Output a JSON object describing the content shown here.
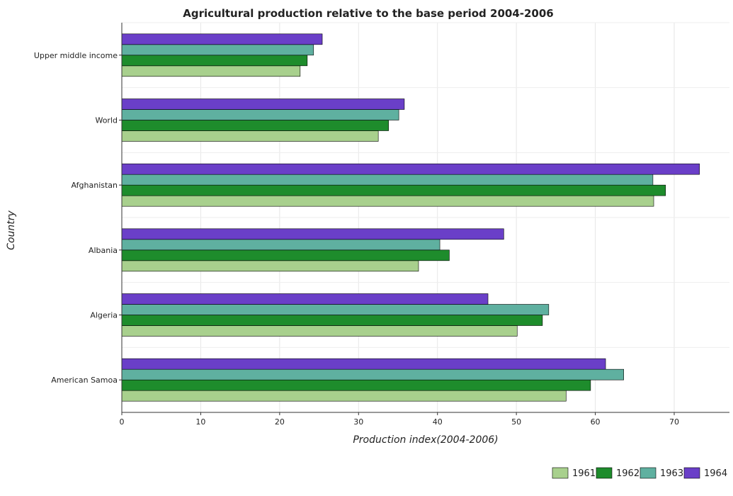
{
  "chart_data": {
    "type": "bar",
    "orientation": "horizontal",
    "title": "Agricultural production relative to the base period 2004-2006",
    "xlabel": "Production index(2004-2006)",
    "ylabel": "Country",
    "xlim": [
      0,
      77
    ],
    "xticks": [
      0,
      10,
      20,
      30,
      40,
      50,
      60,
      70
    ],
    "grid": true,
    "legend_position": "bottom-right",
    "categories": [
      "Upper middle income",
      "World",
      "Afghanistan",
      "Albania",
      "Algeria",
      "American Samoa"
    ],
    "series": [
      {
        "name": "1961",
        "color": "#a8d08d",
        "values": [
          22.6,
          32.5,
          67.4,
          37.6,
          50.1,
          56.3
        ]
      },
      {
        "name": "1962",
        "color": "#1e8c2c",
        "values": [
          23.5,
          33.8,
          68.9,
          41.5,
          53.3,
          59.4
        ]
      },
      {
        "name": "1963",
        "color": "#5fb0a0",
        "values": [
          24.3,
          35.1,
          67.3,
          40.3,
          54.1,
          63.6
        ]
      },
      {
        "name": "1964",
        "color": "#6a3fc8",
        "values": [
          25.4,
          35.8,
          73.2,
          48.4,
          46.4,
          61.3
        ]
      }
    ]
  }
}
